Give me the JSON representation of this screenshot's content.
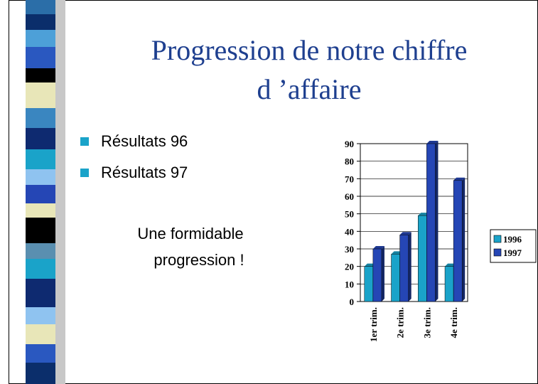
{
  "title_lines": [
    "Progression de notre chiffre",
    "d ’affaire"
  ],
  "bullets": [
    "Résultats 96",
    "Résultats 97"
  ],
  "note_lines": [
    "Une formidable",
    "progression !"
  ],
  "chart_data": {
    "type": "bar",
    "categories": [
      "1er trim.",
      "2e trim.",
      "3e trim.",
      "4e trim."
    ],
    "series": [
      {
        "name": "1996",
        "color": "#1aa3c9",
        "values": [
          20,
          27,
          49,
          20
        ]
      },
      {
        "name": "1997",
        "color": "#2546b5",
        "values": [
          30,
          38,
          90,
          69
        ]
      }
    ],
    "ylim": [
      0,
      90
    ],
    "yticks": [
      0,
      10,
      20,
      30,
      40,
      50,
      60,
      70,
      80,
      90
    ],
    "grid": true,
    "legend": "right"
  }
}
